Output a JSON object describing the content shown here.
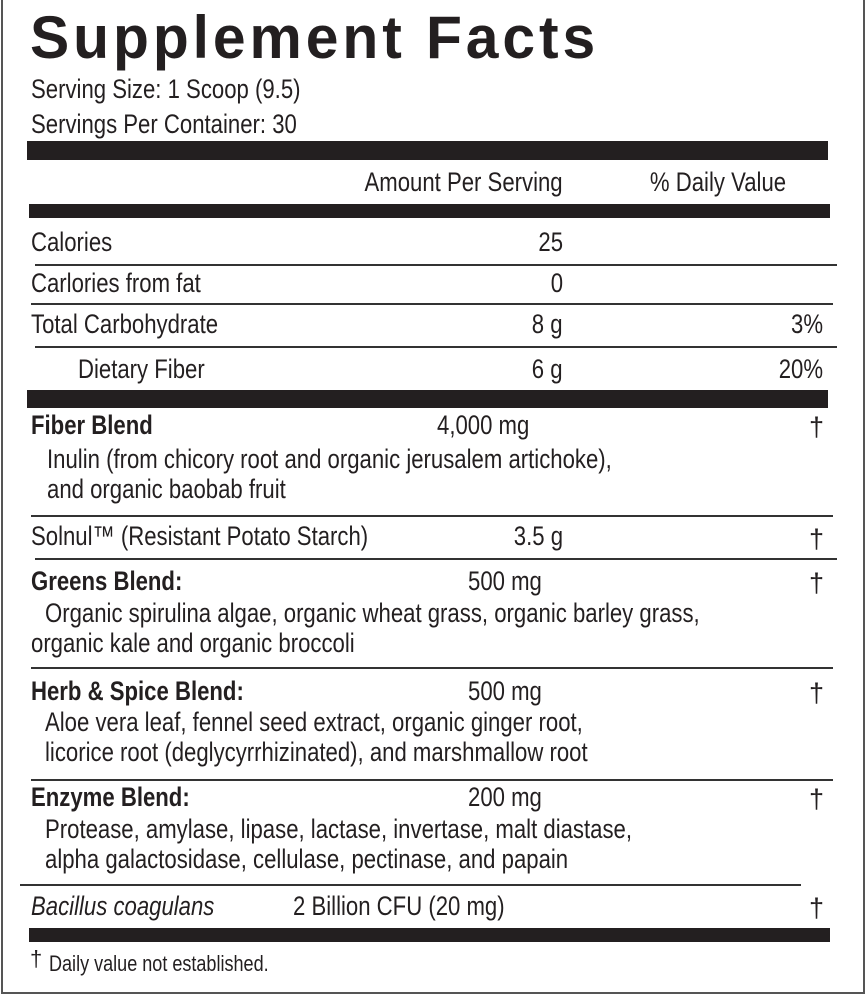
{
  "title": "Supplement Facts",
  "serving_size": "Serving Size: 1 Scoop (9.5)",
  "servings_per_container": "Servings Per Container: 30",
  "header": {
    "amount": "Amount Per Serving",
    "dv": "% Daily Value"
  },
  "nutrients": [
    {
      "name": "Calories",
      "amount": "25",
      "dv": ""
    },
    {
      "name": "Carlories from fat",
      "amount": "0",
      "dv": ""
    },
    {
      "name": "Total Carbohydrate",
      "amount": "8 g",
      "dv": "3%"
    },
    {
      "name": "Dietary Fiber",
      "amount": "6 g",
      "dv": "20%"
    }
  ],
  "blends": [
    {
      "name": "Fiber Blend",
      "amount": "4,000 mg",
      "dv": "†",
      "desc": [
        "Inulin (from chicory root and organic jerusalem artichoke),",
        "and organic baobab fruit"
      ]
    },
    {
      "name": "Solnul™ (Resistant Potato Starch)",
      "amount": "3.5 g",
      "dv": "†"
    },
    {
      "name": "Greens Blend:",
      "amount": "500 mg",
      "dv": "†",
      "desc": [
        "Organic spirulina algae, organic wheat grass, organic barley grass,",
        "organic kale and organic broccoli"
      ]
    },
    {
      "name": "Herb & Spice Blend:",
      "amount": "500 mg",
      "dv": "†",
      "desc": [
        "Aloe vera leaf, fennel seed extract, organic ginger root,",
        "licorice root (deglycyrrhizinated), and marshmallow root"
      ]
    },
    {
      "name": "Enzyme Blend:",
      "amount": "200 mg",
      "dv": "†",
      "desc": [
        "Protease, amylase, lipase, lactase, invertase, malt diastase,",
        "alpha galactosidase, cellulase, pectinase, and papain"
      ]
    },
    {
      "name": "Bacillus coagulans",
      "amount": "2 Billion CFU (20 mg)",
      "dv": "†"
    }
  ],
  "footnote": {
    "symbol": "†",
    "text": "Daily value not established."
  }
}
